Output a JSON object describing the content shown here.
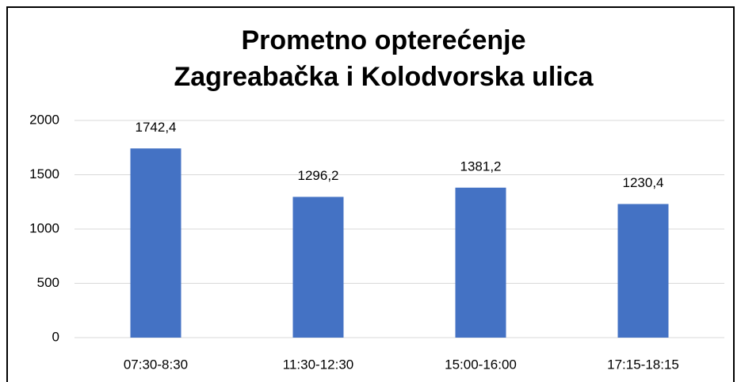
{
  "chart_data": {
    "type": "bar",
    "title": [
      "Prometno  opterećenje",
      "Zagreabačka i Kolodvorska ulica"
    ],
    "categories": [
      "07:30-8:30",
      "11:30-12:30",
      "15:00-16:00",
      "17:15-18:15"
    ],
    "values": [
      1742.4,
      1296.2,
      1381.2,
      1230.4
    ],
    "value_labels": [
      "1742,4",
      "1296,2",
      "1381,2",
      "1230,4"
    ],
    "color": "#4472c4",
    "ylim": [
      0,
      2000
    ],
    "yticks": [
      0,
      500,
      1000,
      1500,
      2000
    ],
    "grid": true
  }
}
